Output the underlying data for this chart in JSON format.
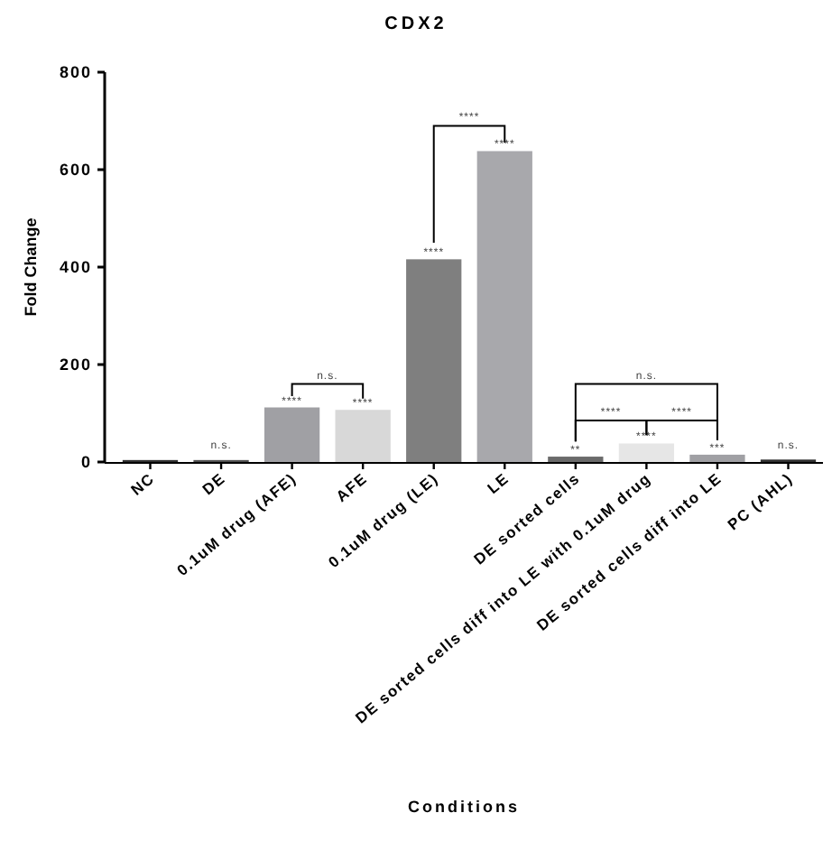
{
  "chart_data": {
    "type": "bar",
    "title": "CDX2",
    "xlabel": "Conditions",
    "ylabel": "Fold Change",
    "categories": [
      "NC",
      "DE",
      "0.1uM drug (AFE)",
      "AFE",
      "0.1uM drug (LE)",
      "LE",
      "DE sorted cells",
      "DE sorted cells diff into LE with 0.1uM drug",
      "DE sorted cells diff into LE",
      "PC (AHL)"
    ],
    "values": [
      4,
      4,
      112,
      107,
      416,
      638,
      11,
      38,
      15,
      5
    ],
    "colors": [
      "#303030",
      "#505050",
      "#a0a0a4",
      "#d8d8d8",
      "#7f7f7f",
      "#a8a8ac",
      "#6a6a6a",
      "#e6e6e6",
      "#a0a0a4",
      "#303030"
    ],
    "ylim": [
      0,
      800
    ],
    "yticks": [
      0,
      200,
      400,
      600,
      800
    ],
    "grid": false,
    "annotations": [
      {
        "text": "n.s.",
        "x": "DE",
        "y": 20
      },
      {
        "text": "****",
        "x": "0.1uM drug (AFE)",
        "y": 112
      },
      {
        "text": "****",
        "x": "AFE",
        "y": 107
      },
      {
        "text": "****",
        "x": "0.1uM drug (LE)",
        "y": 416
      },
      {
        "text": "****",
        "x": "LE",
        "y": 638
      },
      {
        "text": "**",
        "x": "DE sorted cells",
        "y": 11
      },
      {
        "text": "****",
        "x": "DE sorted cells diff into LE with 0.1uM drug",
        "y": 38
      },
      {
        "text": "***",
        "x": "DE sorted cells diff into LE",
        "y": 15
      },
      {
        "text": "n.s.",
        "x": "PC (AHL)",
        "y": 20
      },
      "n.s.",
      "****",
      "****",
      "****",
      "n.s."
    ]
  }
}
